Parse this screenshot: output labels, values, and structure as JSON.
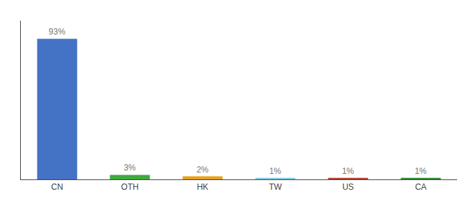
{
  "chart_data": {
    "type": "bar",
    "categories": [
      "CN",
      "OTH",
      "HK",
      "TW",
      "US",
      "CA"
    ],
    "values": [
      93,
      3,
      2,
      1,
      1,
      1
    ],
    "value_labels": [
      "93%",
      "3%",
      "2%",
      "1%",
      "1%",
      "1%"
    ],
    "colors": [
      "#4472C4",
      "#3DAA3D",
      "#E8A020",
      "#7EC8E3",
      "#B04030",
      "#2E8B2E"
    ],
    "ylim": [
      0,
      105
    ],
    "data_labels": true,
    "tick_labels": "x",
    "grid": false
  }
}
